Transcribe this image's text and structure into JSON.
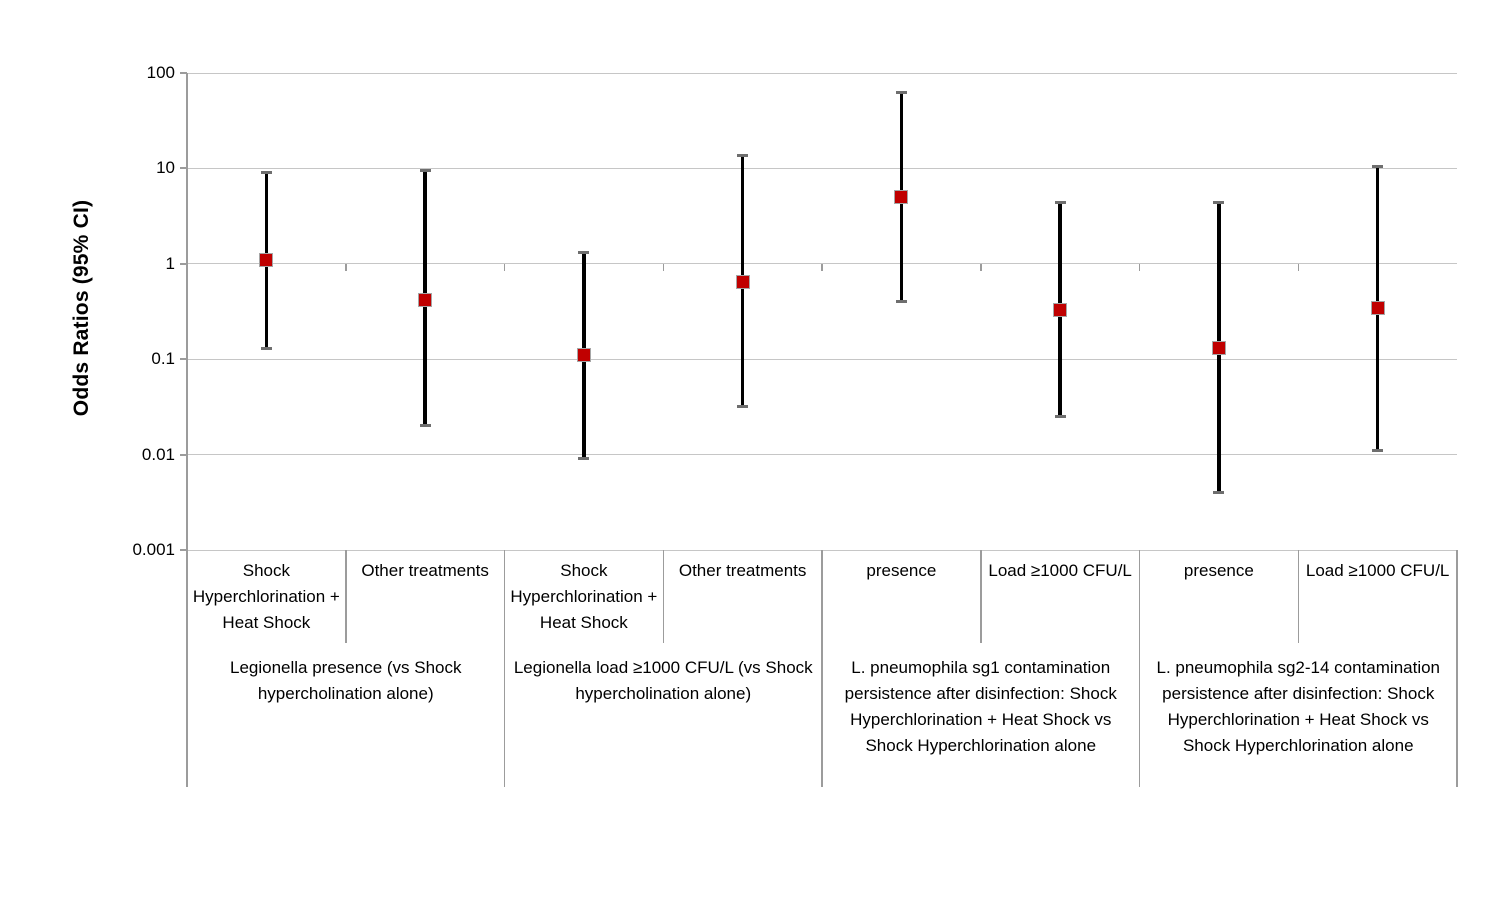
{
  "page": {
    "background": "#ffffff"
  },
  "chart_data": {
    "type": "scatter",
    "variant": "forest-plot-with-error-bars",
    "title": "",
    "ylabel": "Odds Ratios (95% CI)",
    "xlabel": "",
    "yscale": "log",
    "ylim": [
      0.001,
      100
    ],
    "y_ticks": [
      100,
      10,
      1,
      0.1,
      0.01,
      0.001
    ],
    "grid": true,
    "legend": false,
    "category_axis_crosses_at": 1,
    "groups": [
      {
        "label": "Legionella presence (vs Shock hypercholination alone)",
        "points": [
          {
            "category": "Shock Hyperchlorination + Heat Shock",
            "or": 1.1,
            "ci_low": 0.13,
            "ci_high": 9
          },
          {
            "category": "Other treatments",
            "or": 0.42,
            "ci_low": 0.02,
            "ci_high": 9.5
          }
        ]
      },
      {
        "label": "Legionella load ≥1000 CFU/L (vs Shock hypercholination alone)",
        "points": [
          {
            "category": "Shock Hyperchlorination + Heat Shock",
            "or": 0.11,
            "ci_low": 0.009,
            "ci_high": 1.3
          },
          {
            "category": "Other treatments",
            "or": 0.65,
            "ci_low": 0.032,
            "ci_high": 13.5
          }
        ]
      },
      {
        "label": "L. pneumophila sg1 contamination persistence after disinfection: Shock Hyperchlorination + Heat Shock vs Shock Hyperchlorination alone",
        "points": [
          {
            "category": "presence",
            "or": 5,
            "ci_low": 0.4,
            "ci_high": 63
          },
          {
            "category": "Load ≥1000 CFU/L",
            "or": 0.33,
            "ci_low": 0.025,
            "ci_high": 4.4
          }
        ]
      },
      {
        "label": "L. pneumophila sg2-14 contamination persistence after disinfection: Shock Hyperchlorination + Heat Shock vs Shock Hyperchlorination alone",
        "points": [
          {
            "category": "presence",
            "or": 0.13,
            "ci_low": 0.004,
            "ci_high": 4.4
          },
          {
            "category": "Load ≥1000 CFU/L",
            "or": 0.34,
            "ci_low": 0.011,
            "ci_high": 10.5
          }
        ]
      }
    ],
    "colors": {
      "marker_fill": "#C00000",
      "marker_border": "#A6A6A6",
      "error_bar_line": "#000000",
      "error_bar_cap": "#6E6E6E",
      "gridline": "#C6C6C6",
      "axis": "#9C9C9C",
      "text": "#000000"
    }
  }
}
